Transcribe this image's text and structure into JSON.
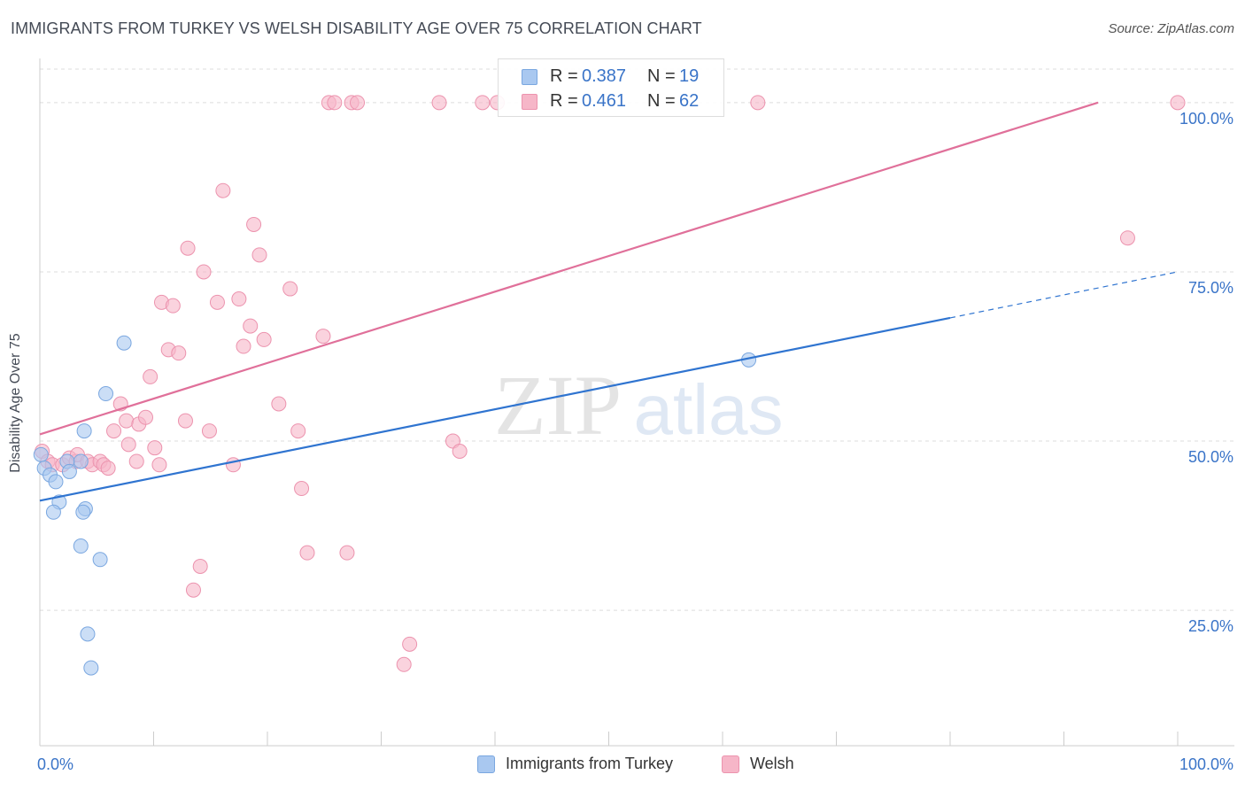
{
  "header": {
    "title": "IMMIGRANTS FROM TURKEY VS WELSH DISABILITY AGE OVER 75 CORRELATION CHART",
    "source": "Source: ZipAtlas.com"
  },
  "watermark": {
    "zip": "ZIP",
    "atlas": "atlas"
  },
  "legend_top": {
    "r_label": "R =",
    "n_label": "N =",
    "rows": [
      {
        "r": "0.387",
        "n": "19"
      },
      {
        "r": "0.461",
        "n": "62"
      }
    ]
  },
  "colors": {
    "blue_fill": "#a9c8f0",
    "blue_stroke": "#7aa7e0",
    "blue_line": "#2f74d0",
    "pink_fill": "#f6b6c8",
    "pink_stroke": "#ec93ae",
    "pink_line": "#e0709a",
    "tick_text": "#3a74c8",
    "grid": "#dcdcdc"
  },
  "chart_data": {
    "type": "scatter",
    "title": "IMMIGRANTS FROM TURKEY VS WELSH DISABILITY AGE OVER 75 CORRELATION CHART",
    "xlabel": "",
    "ylabel": "Disability Age Over 75",
    "xlim": [
      0,
      100
    ],
    "ylim": [
      5,
      106
    ],
    "x_tick_labels": [
      "0.0%",
      "100.0%"
    ],
    "y_ticks": [
      {
        "value": 25,
        "label": "25.0%"
      },
      {
        "value": 50,
        "label": "50.0%"
      },
      {
        "value": 75,
        "label": "75.0%"
      },
      {
        "value": 100,
        "label": "100.0%"
      }
    ],
    "series": [
      {
        "name": "Immigrants from Turkey",
        "color": "blue",
        "points": [
          [
            0.1,
            48.0
          ],
          [
            0.4,
            46.0
          ],
          [
            0.9,
            45.0
          ],
          [
            1.4,
            44.0
          ],
          [
            1.7,
            41.0
          ],
          [
            1.2,
            39.5
          ],
          [
            4.0,
            40.0
          ],
          [
            3.8,
            39.5
          ],
          [
            3.6,
            47.0
          ],
          [
            2.4,
            47.0
          ],
          [
            2.6,
            45.5
          ],
          [
            3.9,
            51.5
          ],
          [
            5.8,
            57.0
          ],
          [
            7.4,
            64.5
          ],
          [
            3.6,
            34.5
          ],
          [
            5.3,
            32.5
          ],
          [
            4.2,
            21.5
          ],
          [
            4.5,
            16.5
          ],
          [
            62.3,
            62.0
          ]
        ],
        "trend": {
          "x0": 0,
          "y0": 41.2,
          "x1": 80,
          "y1": 68.2,
          "dash_to_x": 100,
          "dash_to_y": 75.0
        }
      },
      {
        "name": "Welsh",
        "color": "pink",
        "points": [
          [
            0.2,
            48.5
          ],
          [
            0.7,
            47.0
          ],
          [
            1.1,
            46.5
          ],
          [
            2.0,
            46.5
          ],
          [
            2.6,
            47.5
          ],
          [
            3.2,
            47.0
          ],
          [
            3.3,
            48.0
          ],
          [
            4.2,
            47.0
          ],
          [
            4.6,
            46.5
          ],
          [
            5.3,
            47.0
          ],
          [
            5.6,
            46.5
          ],
          [
            6.0,
            46.0
          ],
          [
            6.5,
            51.5
          ],
          [
            7.1,
            55.5
          ],
          [
            7.6,
            53.0
          ],
          [
            7.8,
            49.5
          ],
          [
            8.5,
            47.0
          ],
          [
            8.7,
            52.5
          ],
          [
            9.3,
            53.5
          ],
          [
            10.1,
            49.0
          ],
          [
            9.7,
            59.5
          ],
          [
            10.7,
            70.5
          ],
          [
            11.3,
            63.5
          ],
          [
            11.7,
            70.0
          ],
          [
            12.2,
            63.0
          ],
          [
            12.8,
            53.0
          ],
          [
            13.0,
            78.5
          ],
          [
            14.4,
            75.0
          ],
          [
            14.9,
            51.5
          ],
          [
            15.6,
            70.5
          ],
          [
            16.1,
            87.0
          ],
          [
            17.0,
            46.5
          ],
          [
            17.5,
            71.0
          ],
          [
            17.9,
            64.0
          ],
          [
            18.5,
            67.0
          ],
          [
            18.8,
            82.0
          ],
          [
            19.3,
            77.5
          ],
          [
            19.7,
            65.0
          ],
          [
            21.0,
            55.5
          ],
          [
            22.0,
            72.5
          ],
          [
            22.7,
            51.5
          ],
          [
            23.0,
            43.0
          ],
          [
            23.5,
            33.5
          ],
          [
            24.9,
            65.5
          ],
          [
            25.4,
            100.0
          ],
          [
            25.9,
            100.0
          ],
          [
            27.0,
            33.5
          ],
          [
            27.4,
            100.0
          ],
          [
            27.9,
            100.0
          ],
          [
            32.0,
            17.0
          ],
          [
            32.5,
            20.0
          ],
          [
            35.1,
            100.0
          ],
          [
            36.3,
            50.0
          ],
          [
            36.9,
            48.5
          ],
          [
            38.9,
            100.0
          ],
          [
            40.2,
            100.0
          ],
          [
            63.1,
            100.0
          ],
          [
            95.6,
            80.0
          ],
          [
            100.0,
            100.0
          ],
          [
            13.5,
            28.0
          ],
          [
            14.1,
            31.5
          ],
          [
            10.5,
            46.5
          ]
        ],
        "trend": {
          "x0": 0,
          "y0": 51.0,
          "x1": 93,
          "y1": 100.0
        }
      }
    ],
    "legend": [
      "Immigrants from Turkey",
      "Welsh"
    ]
  }
}
